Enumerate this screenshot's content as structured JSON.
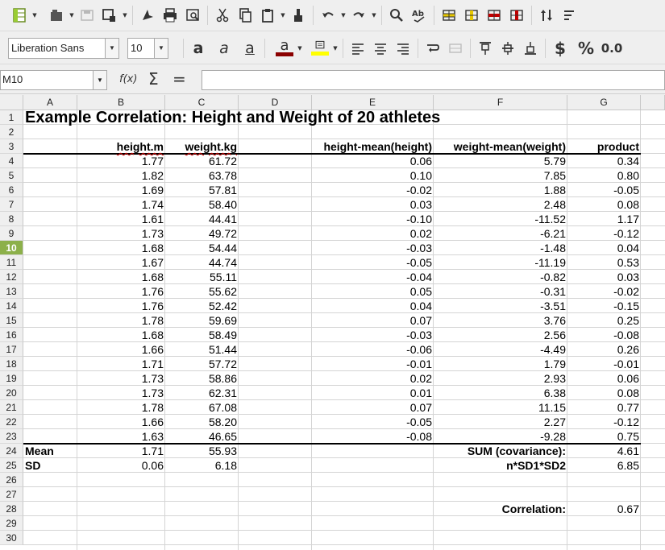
{
  "toolbar": {
    "font_name": "Liberation Sans",
    "font_size": "10",
    "currency": "$",
    "percent": "%",
    "decimal": "0.0",
    "bold_glyph": "a",
    "italic_glyph": "a",
    "underline_glyph": "a",
    "fontcolor_glyph": "a",
    "colors": {
      "font_color": "#8b0000",
      "highlight": "#ffff00"
    }
  },
  "formula_bar": {
    "name_box": "M10",
    "fx": "f(x)",
    "sum": "Σ",
    "equals": "=",
    "formula": ""
  },
  "columns": [
    "A",
    "B",
    "C",
    "D",
    "E",
    "F",
    "G"
  ],
  "rows": [
    "1",
    "2",
    "3",
    "4",
    "5",
    "6",
    "7",
    "8",
    "9",
    "10",
    "11",
    "12",
    "13",
    "14",
    "15",
    "16",
    "17",
    "18",
    "19",
    "20",
    "21",
    "22",
    "23",
    "24",
    "25",
    "26",
    "27",
    "28",
    "29",
    "30"
  ],
  "active_row": "10",
  "sheet": {
    "title": "Example Correlation: Height and Weight of 20 athletes",
    "headers": {
      "height": "height.m",
      "weight": "weight.kg",
      "hdev": "height-mean(height)",
      "wdev": "weight-mean(weight)",
      "product": "product"
    },
    "data": [
      [
        "1.77",
        "61.72",
        "0.06",
        "5.79",
        "0.34"
      ],
      [
        "1.82",
        "63.78",
        "0.10",
        "7.85",
        "0.80"
      ],
      [
        "1.69",
        "57.81",
        "-0.02",
        "1.88",
        "-0.05"
      ],
      [
        "1.74",
        "58.40",
        "0.03",
        "2.48",
        "0.08"
      ],
      [
        "1.61",
        "44.41",
        "-0.10",
        "-11.52",
        "1.17"
      ],
      [
        "1.73",
        "49.72",
        "0.02",
        "-6.21",
        "-0.12"
      ],
      [
        "1.68",
        "54.44",
        "-0.03",
        "-1.48",
        "0.04"
      ],
      [
        "1.67",
        "44.74",
        "-0.05",
        "-11.19",
        "0.53"
      ],
      [
        "1.68",
        "55.11",
        "-0.04",
        "-0.82",
        "0.03"
      ],
      [
        "1.76",
        "55.62",
        "0.05",
        "-0.31",
        "-0.02"
      ],
      [
        "1.76",
        "52.42",
        "0.04",
        "-3.51",
        "-0.15"
      ],
      [
        "1.78",
        "59.69",
        "0.07",
        "3.76",
        "0.25"
      ],
      [
        "1.68",
        "58.49",
        "-0.03",
        "2.56",
        "-0.08"
      ],
      [
        "1.66",
        "51.44",
        "-0.06",
        "-4.49",
        "0.26"
      ],
      [
        "1.71",
        "57.72",
        "-0.01",
        "1.79",
        "-0.01"
      ],
      [
        "1.73",
        "58.86",
        "0.02",
        "2.93",
        "0.06"
      ],
      [
        "1.73",
        "62.31",
        "0.01",
        "6.38",
        "0.08"
      ],
      [
        "1.78",
        "67.08",
        "0.07",
        "11.15",
        "0.77"
      ],
      [
        "1.66",
        "58.20",
        "-0.05",
        "2.27",
        "-0.12"
      ],
      [
        "1.63",
        "46.65",
        "-0.08",
        "-9.28",
        "0.75"
      ]
    ],
    "mean": {
      "label": "Mean",
      "height": "1.71",
      "weight": "55.93"
    },
    "sd": {
      "label": "SD",
      "height": "0.06",
      "weight": "6.18"
    },
    "sum_label": "SUM (covariance):",
    "sum_value": "4.61",
    "nsd_label": "n*SD1*SD2",
    "nsd_value": "6.85",
    "corr_label": "Correlation:",
    "corr_value": "0.67"
  }
}
